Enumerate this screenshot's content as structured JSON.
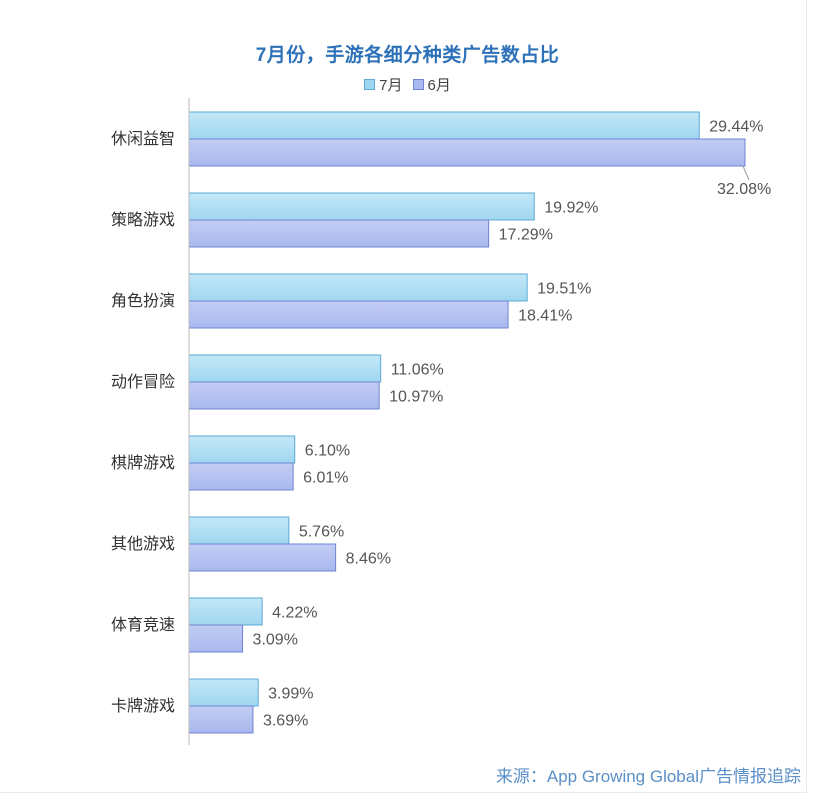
{
  "chart_data": {
    "type": "bar",
    "orientation": "horizontal",
    "title": "7月份，手游各细分种类广告数占比",
    "categories": [
      "休闲益智",
      "策略游戏",
      "角色扮演",
      "动作冒险",
      "棋牌游戏",
      "其他游戏",
      "体育竞速",
      "卡牌游戏"
    ],
    "series": [
      {
        "name": "7月",
        "values": [
          29.44,
          19.92,
          19.51,
          11.06,
          6.1,
          5.76,
          4.22,
          3.99
        ],
        "labels": [
          "29.44%",
          "19.92%",
          "19.51%",
          "11.06%",
          "6.10%",
          "5.76%",
          "4.22%",
          "3.99%"
        ],
        "color": "#9fd6f0"
      },
      {
        "name": "6月",
        "values": [
          32.08,
          17.29,
          18.41,
          10.97,
          6.01,
          8.46,
          3.09,
          3.69
        ],
        "labels": [
          "32.08%",
          "17.29%",
          "18.41%",
          "10.97%",
          "6.01%",
          "8.46%",
          "3.09%",
          "3.69%"
        ],
        "color": "#a9b8ee"
      }
    ],
    "xlim": [
      0,
      34
    ],
    "grid": false,
    "legend_position": "top-center"
  },
  "source": "来源：App Growing Global广告情报追踪"
}
